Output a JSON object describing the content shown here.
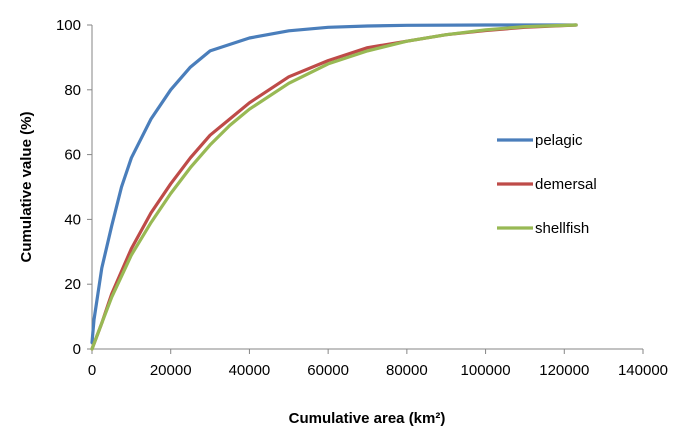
{
  "chart_data": {
    "type": "line",
    "title": "",
    "xlabel": "Cumulative area (km²)",
    "ylabel": "Cumulative value (%)",
    "xlim": [
      0,
      140000
    ],
    "ylim": [
      0,
      100
    ],
    "xticks": [
      0,
      20000,
      40000,
      60000,
      80000,
      100000,
      120000,
      140000
    ],
    "yticks": [
      0,
      20,
      40,
      60,
      80,
      100
    ],
    "grid": false,
    "legend_position": "right",
    "series": [
      {
        "name": "pelagic",
        "color": "#4A7EBB",
        "x": [
          0,
          500,
          1500,
          2500,
          5000,
          7500,
          10000,
          15000,
          20000,
          25000,
          30000,
          40000,
          50000,
          60000,
          70000,
          80000,
          100000,
          123000
        ],
        "y": [
          2,
          9,
          17,
          25,
          38,
          50,
          59,
          71,
          80,
          87,
          92,
          96,
          98.2,
          99.3,
          99.7,
          99.9,
          100,
          100
        ]
      },
      {
        "name": "demersal",
        "color": "#BE4B48",
        "x": [
          0,
          2500,
          5000,
          10000,
          15000,
          20000,
          25000,
          30000,
          35000,
          40000,
          50000,
          60000,
          70000,
          80000,
          90000,
          100000,
          110000,
          123000
        ],
        "y": [
          0,
          8,
          17,
          31,
          42,
          51,
          59,
          66,
          71,
          76,
          84,
          89,
          93,
          95,
          97,
          98.3,
          99.3,
          100
        ]
      },
      {
        "name": "shellfish",
        "color": "#98B954",
        "x": [
          0,
          2500,
          5000,
          10000,
          15000,
          20000,
          25000,
          30000,
          35000,
          40000,
          50000,
          60000,
          70000,
          80000,
          90000,
          100000,
          110000,
          123000
        ],
        "y": [
          0,
          8,
          16,
          29,
          39,
          48,
          56,
          63,
          69,
          74,
          82,
          88,
          92,
          95,
          97,
          98.5,
          99.5,
          100
        ]
      }
    ]
  }
}
